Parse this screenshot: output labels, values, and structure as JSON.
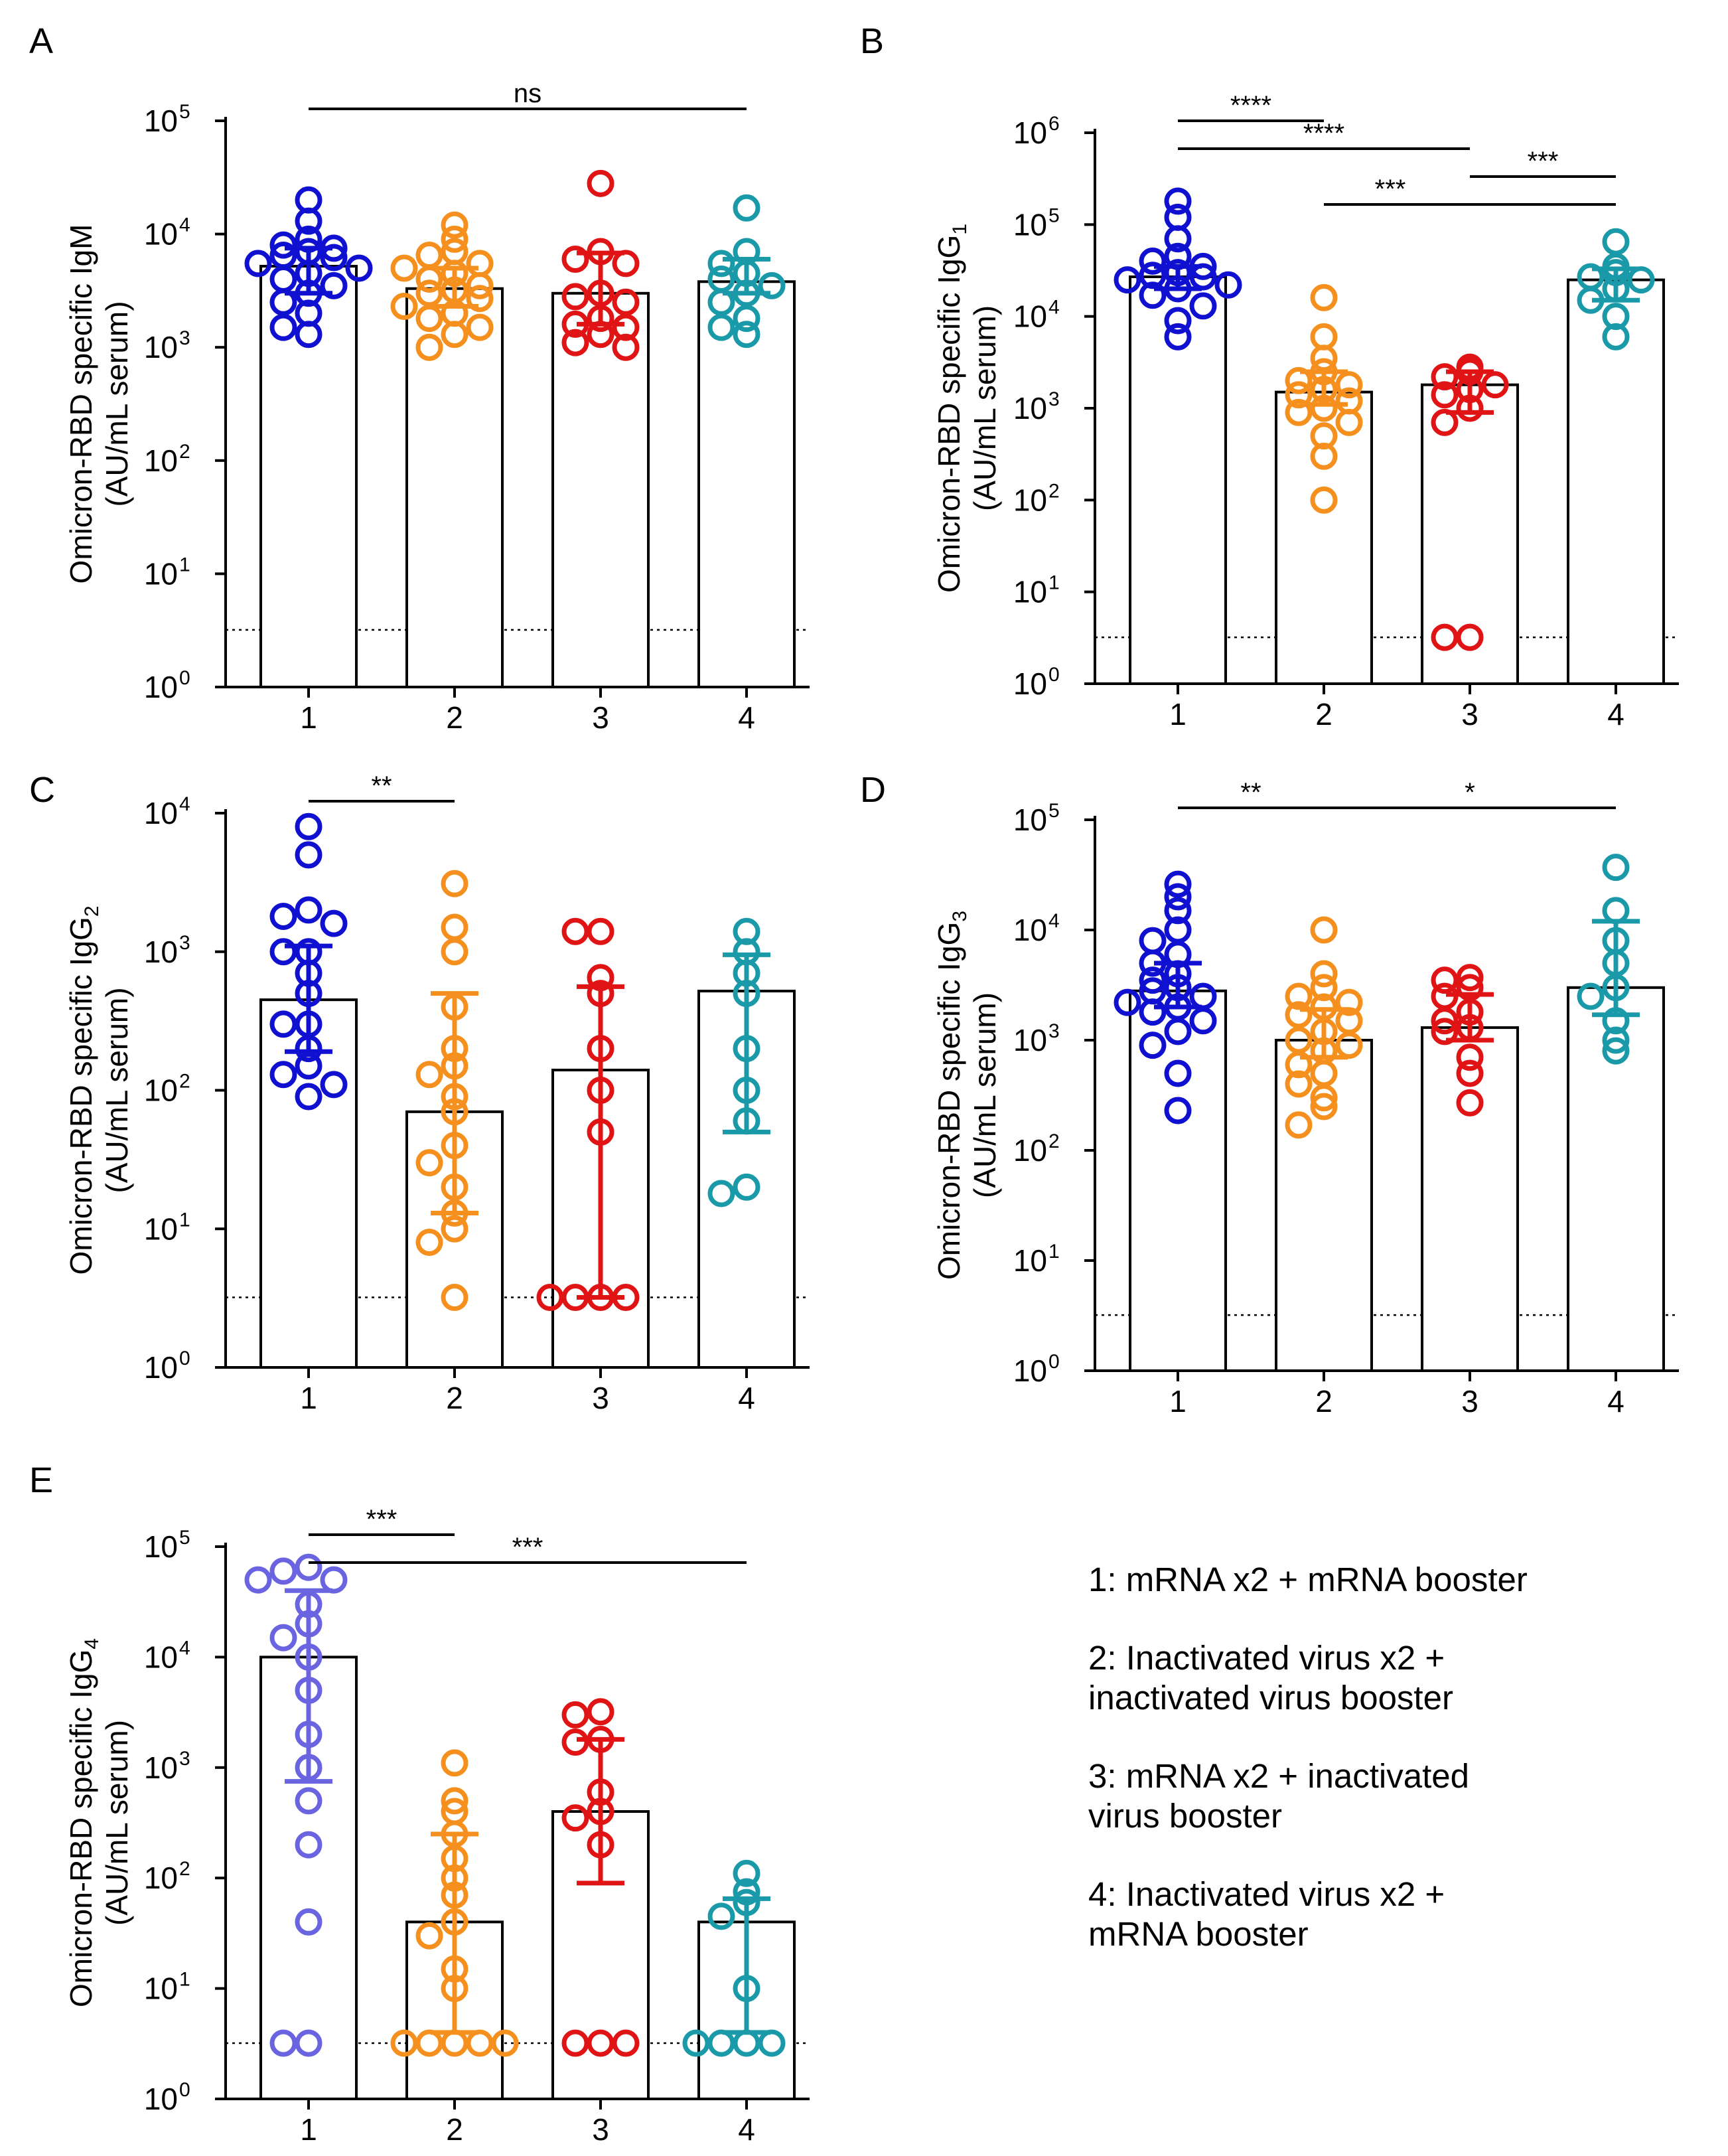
{
  "legend": [
    "1: mRNA x2 + mRNA booster",
    "2: Inactivated virus x2 +\ninactivated virus booster",
    "3: mRNA x2 + inactivated\nvirus booster",
    "4: Inactivated virus x2 +\nmRNA booster"
  ],
  "colors": {
    "g1": "#1010d0",
    "g1_light": "#6a64e0",
    "g2": "#f5901e",
    "g3": "#e01414",
    "g4": "#1a9aa8"
  },
  "chart_data": [
    {
      "panel": "A",
      "type": "bar",
      "ylabel_line1": "Omicron-RBD specific IgM",
      "ylabel_sub": "",
      "ylabel_line2": "(AU/mL serum)",
      "categories": [
        "1",
        "2",
        "3",
        "4"
      ],
      "ylim_exp": [
        0,
        5
      ],
      "ytick_base": "10",
      "detection_limit": 3.2,
      "bars": [
        5200,
        3300,
        3000,
        3800
      ],
      "err": [
        [
          3000,
          7500
        ],
        [
          2300,
          5000
        ],
        [
          1600,
          6800
        ],
        [
          3000,
          6000
        ]
      ],
      "points": [
        [
          20000,
          13000,
          9000,
          8000,
          7500,
          7000,
          6500,
          6200,
          5500,
          5000,
          4500,
          4000,
          3500,
          3000,
          2500,
          2000,
          1500,
          1300
        ],
        [
          12000,
          9000,
          7000,
          6500,
          5500,
          5000,
          4500,
          4000,
          3500,
          3200,
          3000,
          2700,
          2300,
          2000,
          1800,
          1500,
          1300,
          1000
        ],
        [
          28000,
          7000,
          6000,
          5500,
          3000,
          2800,
          2500,
          1800,
          1600,
          1500,
          1300,
          1100,
          1000
        ],
        [
          17000,
          7000,
          5500,
          4500,
          4000,
          3500,
          3000,
          2500,
          1800,
          1500,
          1300
        ]
      ],
      "brackets": [
        {
          "from": 0,
          "to": 3,
          "label": "ns",
          "level": 0
        }
      ]
    },
    {
      "panel": "B",
      "type": "bar",
      "ylabel_line1": "Omicron-RBD specific IgG",
      "ylabel_sub": "1",
      "ylabel_line2": "(AU/mL serum)",
      "categories": [
        "1",
        "2",
        "3",
        "4"
      ],
      "ylim_exp": [
        0,
        6
      ],
      "ytick_base": "10",
      "detection_limit": 3.2,
      "bars": [
        27000,
        1500,
        1800,
        25000
      ],
      "err": [
        [
          20000,
          35000
        ],
        [
          1100,
          2500
        ],
        [
          900,
          2500
        ],
        [
          15000,
          33000
        ]
      ],
      "points": [
        [
          180000,
          120000,
          70000,
          45000,
          40000,
          35000,
          30000,
          28000,
          27000,
          25000,
          22000,
          20000,
          17000,
          13000,
          9000,
          6000
        ],
        [
          16000,
          6000,
          3500,
          2500,
          2000,
          1800,
          1600,
          1400,
          1200,
          1000,
          900,
          700,
          500,
          300,
          100
        ],
        [
          2800,
          2500,
          2200,
          1800,
          1600,
          1400,
          1000,
          700,
          3.2,
          3.2
        ],
        [
          65000,
          35000,
          30000,
          27000,
          25000,
          20000,
          15000,
          10000,
          6000
        ]
      ],
      "brackets": [
        {
          "from": 0,
          "to": 1,
          "label": "****",
          "level": 0
        },
        {
          "from": 0,
          "to": 2,
          "label": "****",
          "level": 1
        },
        {
          "from": 2,
          "to": 3,
          "label": "***",
          "level": 2
        },
        {
          "from": 1,
          "to": 3,
          "label": "***",
          "level": 3
        }
      ]
    },
    {
      "panel": "C",
      "type": "bar",
      "ylabel_line1": "Omicron-RBD specific IgG",
      "ylabel_sub": "2",
      "ylabel_line2": "(AU/mL serum)",
      "categories": [
        "1",
        "2",
        "3",
        "4"
      ],
      "ylim_exp": [
        0,
        4
      ],
      "ytick_base": "10",
      "detection_limit": 3.2,
      "bars": [
        450,
        70,
        140,
        520
      ],
      "err": [
        [
          190,
          1100
        ],
        [
          13,
          500
        ],
        [
          3.2,
          560
        ],
        [
          50,
          950
        ]
      ],
      "points": [
        [
          8000,
          5000,
          2000,
          1800,
          1600,
          1000,
          1000,
          700,
          500,
          300,
          300,
          200,
          150,
          130,
          110,
          90
        ],
        [
          3100,
          1500,
          1000,
          400,
          200,
          150,
          130,
          90,
          70,
          40,
          30,
          20,
          13,
          10,
          8,
          3.2
        ],
        [
          1400,
          1400,
          650,
          500,
          200,
          100,
          50,
          3.2,
          3.2,
          3.2,
          3.2
        ],
        [
          1400,
          1000,
          700,
          500,
          200,
          100,
          60,
          20,
          18
        ]
      ],
      "brackets": [
        {
          "from": 0,
          "to": 1,
          "label": "**",
          "level": 0
        }
      ]
    },
    {
      "panel": "D",
      "type": "bar",
      "ylabel_line1": "Omicron-RBD specific IgG",
      "ylabel_sub": "3",
      "ylabel_line2": "(AU/mL serum)",
      "categories": [
        "1",
        "2",
        "3",
        "4"
      ],
      "ylim_exp": [
        0,
        5
      ],
      "ytick_base": "10",
      "detection_limit": 3.2,
      "bars": [
        2800,
        1000,
        1300,
        3000
      ],
      "err": [
        [
          2000,
          5000
        ],
        [
          700,
          1900
        ],
        [
          1000,
          2600
        ],
        [
          1700,
          12000
        ]
      ],
      "points": [
        [
          26000,
          20000,
          15000,
          10000,
          8000,
          6000,
          5000,
          4000,
          3500,
          3000,
          2800,
          2500,
          2200,
          2000,
          1800,
          1500,
          1200,
          900,
          500,
          230
        ],
        [
          10000,
          4000,
          3000,
          2500,
          2200,
          2000,
          1700,
          1500,
          1200,
          1000,
          900,
          800,
          600,
          500,
          400,
          300,
          250,
          170
        ],
        [
          3700,
          3500,
          3000,
          2500,
          1800,
          1500,
          1300,
          1200,
          700,
          500,
          270
        ],
        [
          37000,
          15000,
          8000,
          5000,
          3000,
          2500,
          1500,
          1000,
          800
        ]
      ],
      "brackets": [
        {
          "from": 0,
          "to": 1,
          "label": "**",
          "level": 0
        },
        {
          "from": 1,
          "to": 3,
          "label": "*",
          "level": 0
        }
      ]
    },
    {
      "panel": "E",
      "type": "bar",
      "ylabel_line1": "Omicron-RBD specific IgG",
      "ylabel_sub": "4",
      "ylabel_line2": "(AU/mL serum)",
      "categories": [
        "1",
        "2",
        "3",
        "4"
      ],
      "ylim_exp": [
        0,
        5
      ],
      "ytick_base": "10",
      "detection_limit": 3.2,
      "bars": [
        10000,
        40,
        400,
        40
      ],
      "err": [
        [
          750,
          40000
        ],
        [
          4,
          250
        ],
        [
          90,
          1800
        ],
        [
          4,
          65
        ]
      ],
      "points": [
        [
          65000,
          60000,
          50000,
          50000,
          30000,
          20000,
          15000,
          10000,
          5000,
          2000,
          1000,
          500,
          200,
          40,
          3.2,
          3.2
        ],
        [
          1100,
          500,
          400,
          250,
          150,
          100,
          70,
          40,
          30,
          15,
          10,
          3.2,
          3.2,
          3.2,
          3.2,
          3.2
        ],
        [
          3200,
          3000,
          1800,
          1700,
          600,
          400,
          350,
          200,
          3.2,
          3.2,
          3.2
        ],
        [
          110,
          75,
          60,
          45,
          10,
          3.2,
          3.2,
          3.2,
          3.2
        ]
      ],
      "brackets": [
        {
          "from": 0,
          "to": 1,
          "label": "***",
          "level": 0
        },
        {
          "from": 0,
          "to": 3,
          "label": "***",
          "level": 1
        }
      ]
    }
  ]
}
